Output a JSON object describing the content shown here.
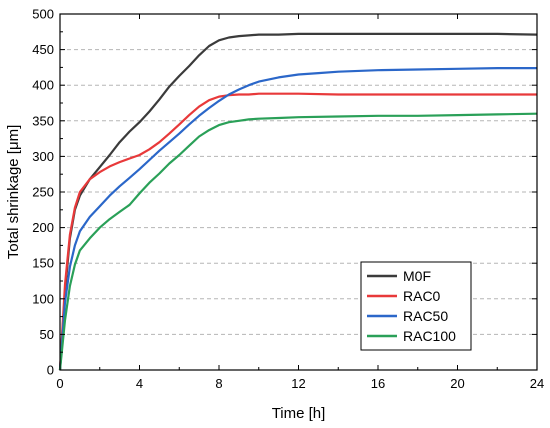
{
  "chart_data": {
    "type": "line",
    "xlabel": "Time [h]",
    "ylabel": "Total shrinkage [μm]",
    "xlim": [
      0,
      24
    ],
    "ylim": [
      0,
      500
    ],
    "x_ticks": [
      0,
      4,
      8,
      12,
      16,
      20,
      24
    ],
    "y_ticks": [
      0,
      50,
      100,
      150,
      200,
      250,
      300,
      350,
      400,
      450,
      500
    ],
    "grid": "horizontal dashed",
    "legend_position": "bottom-right",
    "series": [
      {
        "name": "M0F",
        "color": "#3b3b3b",
        "x": [
          0,
          0.25,
          0.5,
          0.75,
          1,
          1.5,
          2,
          2.5,
          3,
          3.5,
          4,
          4.5,
          5,
          5.5,
          6,
          6.5,
          7,
          7.5,
          8,
          8.5,
          9,
          9.5,
          10,
          11,
          12,
          14,
          16,
          18,
          20,
          22,
          24
        ],
        "y": [
          0,
          110,
          185,
          225,
          245,
          268,
          285,
          302,
          320,
          335,
          348,
          363,
          380,
          398,
          413,
          427,
          442,
          455,
          463,
          467,
          469,
          470,
          471,
          471,
          472,
          472,
          472,
          472,
          472,
          472,
          471
        ]
      },
      {
        "name": "RAC0",
        "color": "#e8393a",
        "x": [
          0,
          0.25,
          0.5,
          0.75,
          1,
          1.5,
          2,
          2.5,
          3,
          3.5,
          4,
          4.5,
          5,
          5.5,
          6,
          6.5,
          7,
          7.5,
          8,
          8.5,
          9,
          9.5,
          10,
          12,
          14,
          16,
          18,
          20,
          22,
          24
        ],
        "y": [
          0,
          120,
          190,
          228,
          250,
          268,
          278,
          286,
          292,
          297,
          302,
          310,
          320,
          332,
          345,
          358,
          370,
          379,
          384,
          386,
          387,
          387,
          388,
          388,
          387,
          387,
          387,
          387,
          387,
          387
        ]
      },
      {
        "name": "RAC50",
        "color": "#2b67c9",
        "x": [
          0,
          0.25,
          0.5,
          0.75,
          1,
          1.5,
          2,
          2.5,
          3,
          3.5,
          4,
          4.5,
          5,
          5.5,
          6,
          6.5,
          7,
          7.5,
          8,
          8.5,
          9,
          9.5,
          10,
          11,
          12,
          13,
          14,
          16,
          18,
          20,
          22,
          24
        ],
        "y": [
          0,
          95,
          145,
          175,
          195,
          215,
          230,
          245,
          258,
          270,
          282,
          295,
          308,
          320,
          332,
          345,
          357,
          368,
          378,
          387,
          394,
          400,
          405,
          411,
          415,
          417,
          419,
          421,
          422,
          423,
          424,
          424
        ]
      },
      {
        "name": "RAC100",
        "color": "#2aa058",
        "x": [
          0,
          0.25,
          0.5,
          0.75,
          1,
          1.5,
          2,
          2.5,
          3,
          3.5,
          4,
          4.5,
          5,
          5.5,
          6,
          6.5,
          7,
          7.5,
          8,
          8.5,
          9,
          9.5,
          10,
          11,
          12,
          14,
          16,
          18,
          20,
          22,
          24
        ],
        "y": [
          0,
          70,
          118,
          148,
          168,
          185,
          200,
          212,
          222,
          232,
          248,
          263,
          276,
          290,
          302,
          315,
          328,
          337,
          344,
          348,
          350,
          352,
          353,
          354,
          355,
          356,
          357,
          357,
          358,
          359,
          360
        ]
      }
    ]
  }
}
